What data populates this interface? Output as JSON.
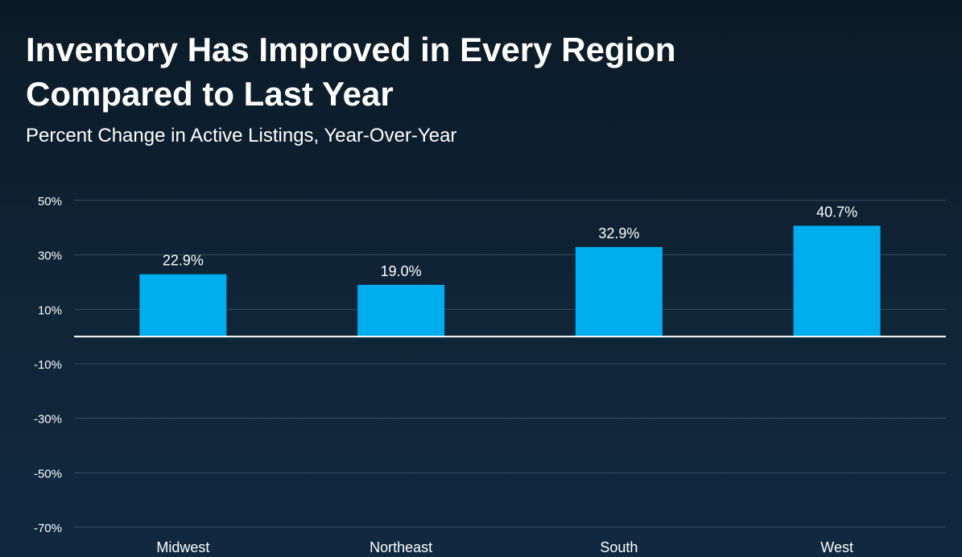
{
  "header": {
    "title_line1": "Inventory Has Improved in Every Region",
    "title_line2": "Compared to Last Year",
    "subtitle": "Percent Change in Active Listings, Year-Over-Year"
  },
  "colors": {
    "bar": "#00adee",
    "grid": "#3b4f60",
    "zero_line": "#ffffff",
    "text": "#ffffff"
  },
  "chart_data": {
    "type": "bar",
    "title": "Inventory Has Improved in Every Region Compared to Last Year",
    "subtitle": "Percent Change in Active Listings, Year-Over-Year",
    "categories": [
      "Midwest",
      "Northeast",
      "South",
      "West"
    ],
    "values": [
      22.9,
      19.0,
      32.9,
      40.7
    ],
    "value_labels": [
      "22.9%",
      "19.0%",
      "32.9%",
      "40.7%"
    ],
    "yticks": [
      50,
      30,
      10,
      -10,
      -30,
      -50,
      -70
    ],
    "ytick_labels": [
      "50%",
      "30%",
      "10%",
      "-10%",
      "-30%",
      "-50%",
      "-70%"
    ],
    "ylim": [
      -70,
      50
    ],
    "grid": true,
    "legend": false
  }
}
